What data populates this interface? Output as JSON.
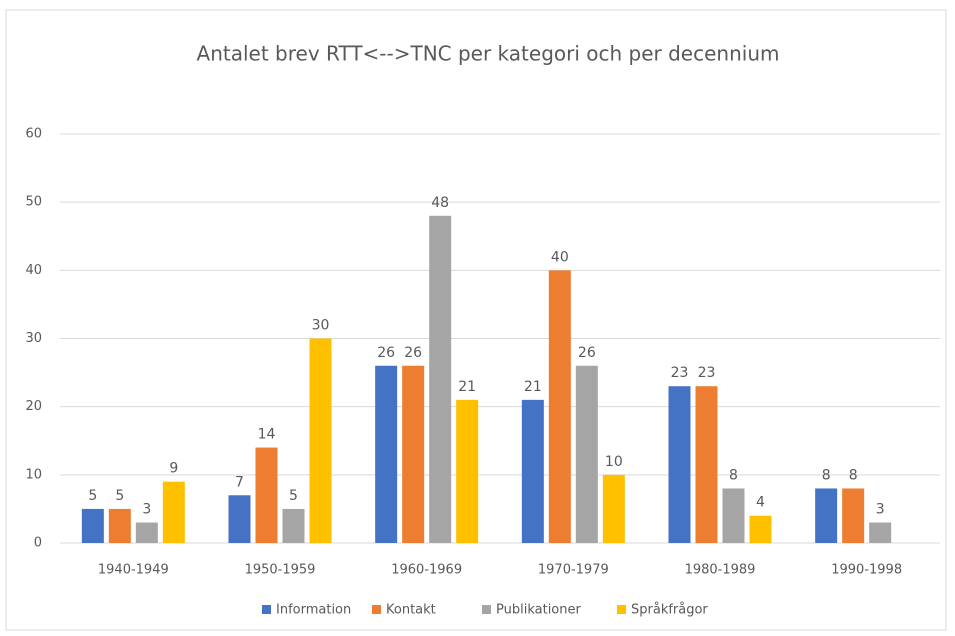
{
  "chart_data": {
    "type": "bar",
    "title": "Antalet brev RTT<-->TNC per kategori och per decennium",
    "categories": [
      "1940-1949",
      "1950-1959",
      "1960-1969",
      "1970-1979",
      "1980-1989",
      "1990-1998"
    ],
    "series": [
      {
        "name": "Information",
        "color": "#4472c4",
        "values": [
          5,
          7,
          26,
          21,
          23,
          8
        ]
      },
      {
        "name": "Kontakt",
        "color": "#ed7d31",
        "values": [
          5,
          14,
          26,
          40,
          23,
          8
        ]
      },
      {
        "name": "Publikationer",
        "color": "#a5a5a5",
        "values": [
          3,
          5,
          48,
          26,
          8,
          3
        ]
      },
      {
        "name": "Språkfrågor",
        "color": "#ffc000",
        "values": [
          9,
          30,
          21,
          10,
          4,
          null
        ]
      }
    ],
    "ylim": [
      0,
      60
    ],
    "yticks": [
      0,
      10,
      20,
      30,
      40,
      50,
      60
    ],
    "grid": true,
    "legend": "bottom"
  }
}
